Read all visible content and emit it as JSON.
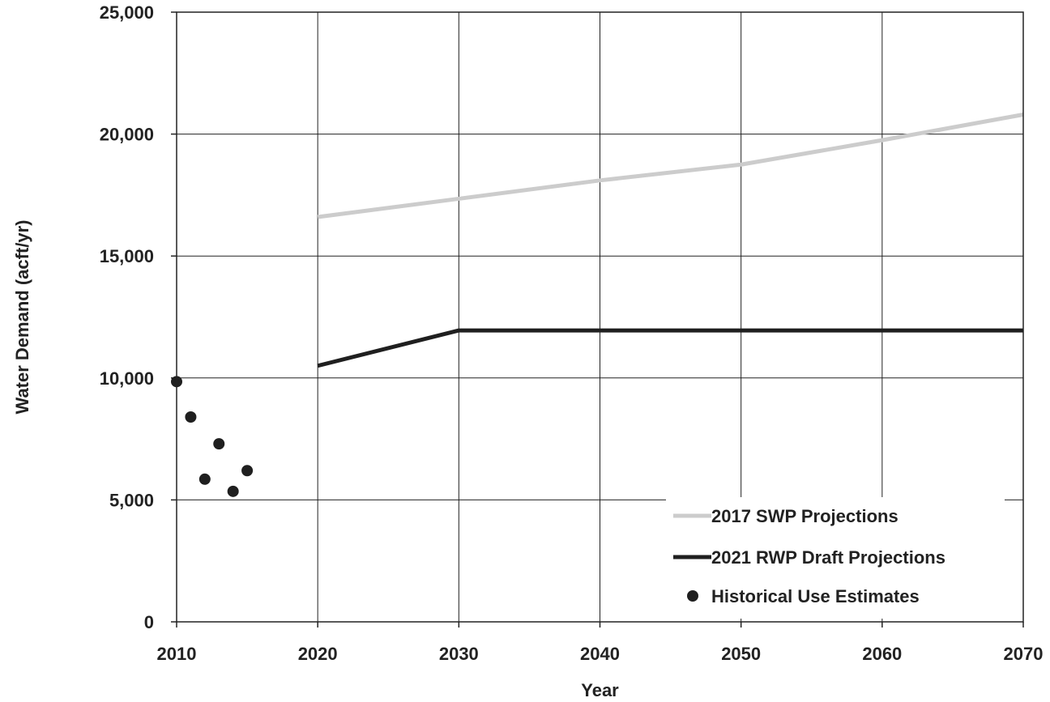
{
  "chart_data": {
    "type": "line",
    "title": "",
    "xlabel": "Year",
    "ylabel": "Water Demand (acft/yr)",
    "xlim": [
      2010,
      2070
    ],
    "ylim": [
      0,
      25000
    ],
    "x_ticks": [
      "2010",
      "2020",
      "2030",
      "2040",
      "2050",
      "2060",
      "2070"
    ],
    "y_ticks": [
      "0",
      "5,000",
      "10,000",
      "15,000",
      "20,000",
      "25,000"
    ],
    "grid": true,
    "legend_position": "bottom-right",
    "series": [
      {
        "name": "2017 SWP Projections",
        "kind": "line",
        "color": "#cccccc",
        "x": [
          2020,
          2030,
          2040,
          2050,
          2060,
          2070
        ],
        "y": [
          16600,
          17350,
          18100,
          18750,
          19750,
          20800
        ]
      },
      {
        "name": "2021 RWP Draft Projections",
        "kind": "line",
        "color": "#1f1f1f",
        "x": [
          2020,
          2030,
          2040,
          2050,
          2060,
          2070
        ],
        "y": [
          10500,
          11950,
          11950,
          11950,
          11950,
          11950
        ]
      },
      {
        "name": "Historical Use Estimates",
        "kind": "scatter",
        "color": "#1f1f1f",
        "x": [
          2010,
          2011,
          2012,
          2013,
          2014,
          2015
        ],
        "y": [
          9850,
          8400,
          5850,
          7300,
          5350,
          6200
        ]
      }
    ]
  }
}
